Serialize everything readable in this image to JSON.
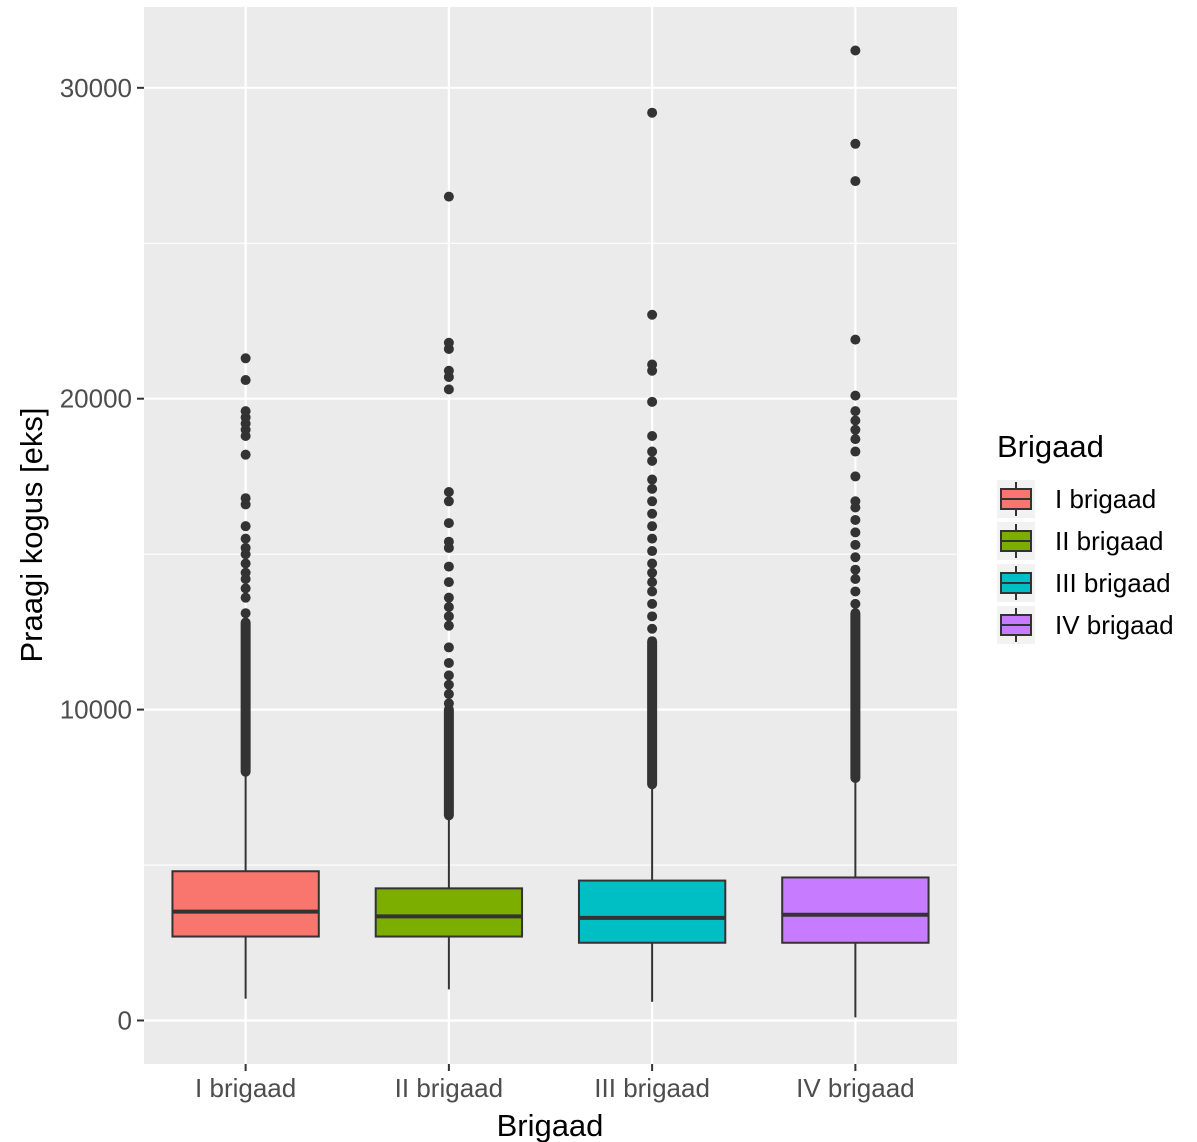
{
  "chart_data": {
    "type": "box",
    "title": "",
    "xlabel": "Brigaad",
    "ylabel": "Praagi kogus [eks]",
    "ylim": [
      -1400,
      32600
    ],
    "y_ticks": [
      0,
      10000,
      20000,
      30000
    ],
    "y_tick_labels": [
      "0",
      "10000",
      "20000",
      "30000"
    ],
    "grid": true,
    "legend": {
      "title": "Brigaad",
      "position": "right",
      "entries": [
        "I brigaad",
        "II brigaad",
        "III brigaad",
        "IV brigaad"
      ]
    },
    "categories": [
      "I brigaad",
      "II brigaad",
      "III brigaad",
      "IV brigaad"
    ],
    "series": [
      {
        "name": "I brigaad",
        "color": "#F8766D",
        "whisker_low": 700,
        "q1": 2700,
        "median": 3500,
        "q3": 4800,
        "whisker_high": 7900,
        "outlier_dense_range": [
          8000,
          12800
        ],
        "outliers": [
          13100,
          13600,
          13900,
          14200,
          14400,
          14700,
          15000,
          15200,
          15500,
          15900,
          16600,
          16800,
          18200,
          18800,
          19000,
          19200,
          19400,
          19600,
          20600,
          21300
        ]
      },
      {
        "name": "II brigaad",
        "color": "#7CAE00",
        "whisker_low": 1000,
        "q1": 2700,
        "median": 3350,
        "q3": 4250,
        "whisker_high": 6500,
        "outlier_dense_range": [
          6600,
          10000
        ],
        "outliers": [
          10200,
          10500,
          10800,
          11100,
          11500,
          12000,
          12700,
          13000,
          13300,
          13600,
          14100,
          14600,
          15200,
          15400,
          16000,
          16700,
          17000,
          20300,
          20700,
          20900,
          21600,
          21800,
          26500
        ]
      },
      {
        "name": "III brigaad",
        "color": "#00BFC4",
        "whisker_low": 600,
        "q1": 2500,
        "median": 3300,
        "q3": 4500,
        "whisker_high": 7500,
        "outlier_dense_range": [
          7600,
          12200
        ],
        "outliers": [
          12600,
          13000,
          13400,
          13800,
          14100,
          14400,
          14700,
          15100,
          15500,
          15900,
          16300,
          16700,
          17100,
          17400,
          18000,
          18300,
          18800,
          19900,
          20900,
          21100,
          22700,
          29200
        ]
      },
      {
        "name": "IV brigaad",
        "color": "#C77CFF",
        "whisker_low": 100,
        "q1": 2500,
        "median": 3400,
        "q3": 4600,
        "whisker_high": 7700,
        "outlier_dense_range": [
          7800,
          13100
        ],
        "outliers": [
          13400,
          13800,
          14200,
          14500,
          14900,
          15300,
          15700,
          16100,
          16500,
          16700,
          17500,
          18300,
          18700,
          19000,
          19300,
          19600,
          20100,
          21900,
          27000,
          28200,
          31200
        ]
      }
    ]
  }
}
